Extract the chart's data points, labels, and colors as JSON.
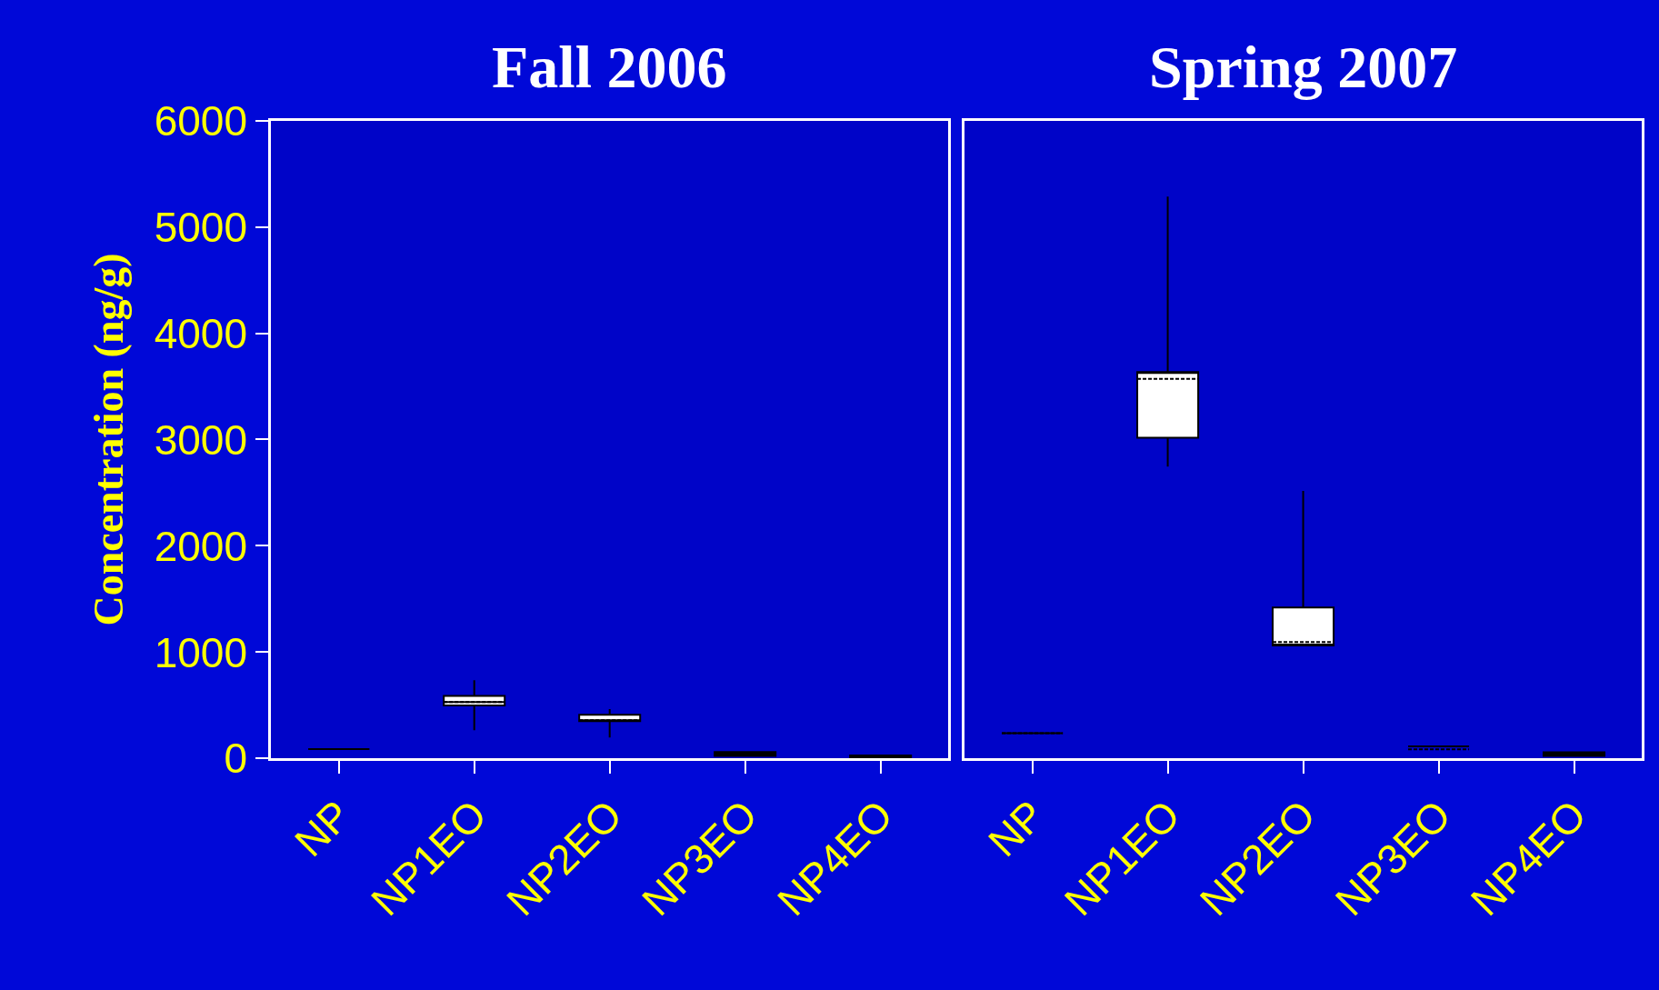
{
  "chart_data": [
    {
      "type": "box",
      "title": "Fall 2006",
      "ylabel": "Concentration (ng/g)",
      "categories": [
        "NP",
        "NP1EO",
        "NP2EO",
        "NP3EO",
        "NP4EO"
      ],
      "ylim": [
        0,
        6000
      ],
      "yticks": [
        0,
        1000,
        2000,
        3000,
        4000,
        5000,
        6000
      ],
      "grid": false,
      "series": [
        {
          "colors": [
            "#000000",
            "#ffffff",
            "#ffffff",
            "#000000",
            "#000000"
          ],
          "boxes": [
            {
              "low": 88,
              "q1": 88,
              "median": 88,
              "q3": 88,
              "high": 88,
              "mean": 88
            },
            {
              "low": 266,
              "q1": 499,
              "median": 531,
              "q3": 588,
              "high": 737,
              "mean": 531
            },
            {
              "low": 198,
              "q1": 351,
              "median": 359,
              "q3": 411,
              "high": 464,
              "mean": 359
            },
            {
              "low": 25,
              "q1": 25,
              "median": 33,
              "q3": 60,
              "high": 60,
              "mean": 33
            },
            {
              "low": 0,
              "q1": 0,
              "median": 5,
              "q3": 28,
              "high": 28,
              "mean": 5
            }
          ]
        }
      ]
    },
    {
      "type": "box",
      "title": "Spring 2007",
      "categories": [
        "NP",
        "NP1EO",
        "NP2EO",
        "NP3EO",
        "NP4EO"
      ],
      "ylim": [
        0,
        6000
      ],
      "yticks": [
        0,
        1000,
        2000,
        3000,
        4000,
        5000,
        6000
      ],
      "tick_labels": "x",
      "grid": false,
      "series": [
        {
          "colors": [
            "#000000",
            "#ffffff",
            "#ffffff",
            "#000000",
            "#000000"
          ],
          "boxes": [
            {
              "low": 238,
              "q1": 238,
              "median": 238,
              "q3": 238,
              "high": 238,
              "mean": 238
            },
            {
              "low": 2746,
              "q1": 3016,
              "median": 3635,
              "q3": 3635,
              "high": 5286,
              "mean": 3571
            },
            {
              "low": 1063,
              "q1": 1063,
              "median": 1063,
              "q3": 1420,
              "high": 2516,
              "mean": 1095
            },
            {
              "low": 114,
              "q1": 114,
              "median": 114,
              "q3": 114,
              "high": 114,
              "mean": 87
            },
            {
              "low": 24,
              "q1": 24,
              "median": 29,
              "q3": 59,
              "high": 59,
              "mean": 29
            }
          ]
        }
      ]
    }
  ]
}
